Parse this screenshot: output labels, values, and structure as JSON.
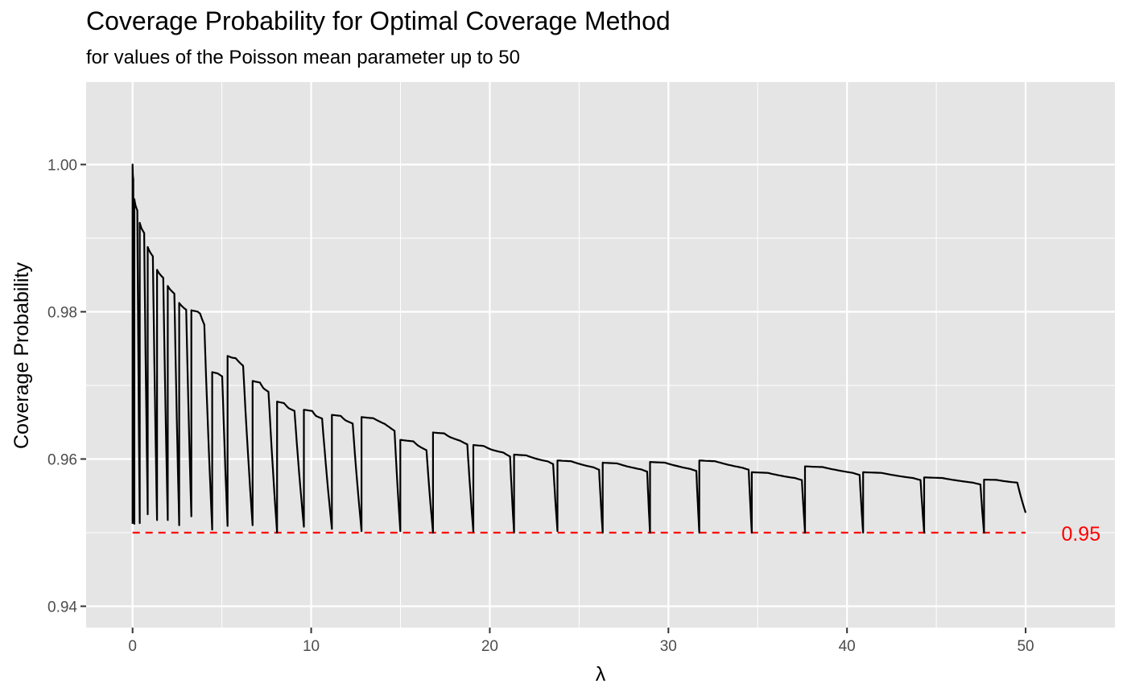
{
  "chart_data": {
    "type": "line",
    "title": "Coverage Probability for Optimal Coverage Method",
    "subtitle": "for values of the Poisson mean parameter up to 50",
    "xlabel": "λ",
    "ylabel": "Coverage Probability",
    "xlim": [
      -2.6,
      55.0
    ],
    "ylim": [
      0.9371,
      1.0112
    ],
    "x_ticks": [
      0,
      10,
      20,
      30,
      40,
      50
    ],
    "x_tick_labels": [
      "0",
      "10",
      "20",
      "30",
      "40",
      "50"
    ],
    "y_ticks": [
      0.94,
      0.96,
      0.98,
      1.0
    ],
    "y_tick_labels": [
      "0.94",
      "0.96",
      "0.98",
      "1.00"
    ],
    "grid": true,
    "background": "#e5e5e5",
    "grid_color": "#ffffff",
    "line_color": "#000000",
    "reference_line": {
      "y": 0.95,
      "x_range": [
        0,
        50
      ],
      "style": "dashed",
      "color": "#ff0000",
      "label": "0.95",
      "label_x": 52.0
    },
    "series": [
      {
        "segments": [
          {
            "x0": 0.0,
            "top": 1.0,
            "bottom": 0.9512,
            "x1": 0.1,
            "shape": [
              [
                0.15,
                0.972
              ],
              [
                0.4,
                0.96
              ]
            ]
          },
          {
            "x0": 0.1,
            "top": 0.9953,
            "bottom": 0.9513,
            "x1": 0.4,
            "shape": [
              [
                0.2,
                0.982
              ],
              [
                0.55,
                0.965
              ]
            ]
          },
          {
            "x0": 0.4,
            "top": 0.9921,
            "bottom": 0.9525,
            "x1": 0.85,
            "shape": [
              [
                0.2,
                0.982
              ],
              [
                0.55,
                0.965
              ]
            ]
          },
          {
            "x0": 0.85,
            "top": 0.9888,
            "bottom": 0.9517,
            "x1": 1.37,
            "shape": [
              [
                0.2,
                0.984
              ],
              [
                0.55,
                0.966
              ]
            ]
          },
          {
            "x0": 1.37,
            "top": 0.9857,
            "bottom": 0.9517,
            "x1": 1.97,
            "shape": [
              [
                0.22,
                0.985
              ],
              [
                0.58,
                0.968
              ]
            ]
          },
          {
            "x0": 1.97,
            "top": 0.9835,
            "bottom": 0.951,
            "x1": 2.61,
            "shape": [
              [
                0.22,
                0.985
              ],
              [
                0.58,
                0.968
              ]
            ]
          },
          {
            "x0": 2.61,
            "top": 0.9812,
            "bottom": 0.9522,
            "x1": 3.29,
            "shape": [
              [
                0.22,
                0.985
              ],
              [
                0.58,
                0.968
              ]
            ]
          },
          {
            "x0": 3.29,
            "top": 0.9802,
            "bottom": 0.9504,
            "x1": 4.46,
            "shape": [
              [
                0.3,
                0.994
              ],
              [
                0.42,
                0.985
              ],
              [
                0.62,
                0.935
              ]
            ]
          },
          {
            "x0": 4.46,
            "top": 0.9718,
            "bottom": 0.9509,
            "x1": 5.32,
            "shape": [
              [
                0.35,
                0.992
              ],
              [
                0.65,
                0.973
              ]
            ]
          },
          {
            "x0": 5.32,
            "top": 0.974,
            "bottom": 0.951,
            "x1": 6.72,
            "shape": [
              [
                0.2,
                0.989
              ],
              [
                0.32,
                0.987
              ],
              [
                0.62,
                0.942
              ]
            ]
          },
          {
            "x0": 6.72,
            "top": 0.9706,
            "bottom": 0.95,
            "x1": 8.09,
            "shape": [
              [
                0.3,
                0.99
              ],
              [
                0.45,
                0.951
              ],
              [
                0.65,
                0.929
              ]
            ]
          },
          {
            "x0": 8.09,
            "top": 0.9678,
            "bottom": 0.9508,
            "x1": 9.59,
            "shape": [
              [
                0.26,
                0.988
              ],
              [
                0.43,
                0.948
              ],
              [
                0.65,
                0.926
              ]
            ]
          },
          {
            "x0": 9.59,
            "top": 0.9667,
            "bottom": 0.9505,
            "x1": 11.16,
            "shape": [
              [
                0.3,
                0.989
              ],
              [
                0.43,
                0.948
              ],
              [
                0.65,
                0.926
              ]
            ]
          },
          {
            "x0": 11.16,
            "top": 0.966,
            "bottom": 0.9502,
            "x1": 12.82,
            "shape": [
              [
                0.3,
                0.991
              ],
              [
                0.45,
                0.954
              ],
              [
                0.7,
                0.926
              ]
            ]
          },
          {
            "x0": 12.82,
            "top": 0.9657,
            "bottom": 0.9502,
            "x1": 14.99,
            "shape": [
              [
                0.22,
                0.992
              ],
              [
                0.3,
                0.99
              ],
              [
                0.6,
                0.94
              ],
              [
                0.72,
                0.911
              ],
              [
                0.85,
                0.88
              ]
            ]
          },
          {
            "x0": 14.99,
            "top": 0.9626,
            "bottom": 0.95,
            "x1": 16.82,
            "shape": [
              [
                0.4,
                0.984
              ],
              [
                0.55,
                0.937
              ],
              [
                0.8,
                0.889
              ]
            ]
          },
          {
            "x0": 16.82,
            "top": 0.9636,
            "bottom": 0.9501,
            "x1": 19.08,
            "shape": [
              [
                0.28,
                0.991
              ],
              [
                0.42,
                0.954
              ],
              [
                0.67,
                0.918
              ],
              [
                0.85,
                0.881
              ]
            ]
          },
          {
            "x0": 19.08,
            "top": 0.9619,
            "bottom": 0.95,
            "x1": 21.36,
            "shape": [
              [
                0.25,
                0.99
              ],
              [
                0.44,
                0.948
              ],
              [
                0.74,
                0.913
              ],
              [
                0.9,
                0.87
              ]
            ]
          },
          {
            "x0": 21.36,
            "top": 0.9606,
            "bottom": 0.9502,
            "x1": 23.79,
            "shape": [
              [
                0.28,
                0.99
              ],
              [
                0.5,
                0.947
              ],
              [
                0.78,
                0.911
              ],
              [
                0.9,
                0.877
              ]
            ]
          },
          {
            "x0": 23.79,
            "top": 0.9598,
            "bottom": 0.95,
            "x1": 26.32,
            "shape": [
              [
                0.3,
                0.99
              ],
              [
                0.55,
                0.941
              ],
              [
                0.8,
                0.905
              ],
              [
                0.92,
                0.873
              ]
            ]
          },
          {
            "x0": 26.32,
            "top": 0.9595,
            "bottom": 0.95,
            "x1": 28.97,
            "shape": [
              [
                0.3,
                0.99
              ],
              [
                0.57,
                0.939
              ],
              [
                0.82,
                0.903
              ],
              [
                0.94,
                0.873
              ]
            ]
          },
          {
            "x0": 28.97,
            "top": 0.9596,
            "bottom": 0.95,
            "x1": 31.73,
            "shape": [
              [
                0.3,
                0.99
              ],
              [
                0.57,
                0.939
              ],
              [
                0.82,
                0.901
              ],
              [
                0.94,
                0.874
              ]
            ]
          },
          {
            "x0": 31.73,
            "top": 0.9598,
            "bottom": 0.95,
            "x1": 34.67,
            "shape": [
              [
                0.3,
                0.99
              ],
              [
                0.57,
                0.938
              ],
              [
                0.82,
                0.9
              ],
              [
                0.94,
                0.873
              ]
            ]
          },
          {
            "x0": 34.67,
            "top": 0.9582,
            "bottom": 0.95,
            "x1": 37.65,
            "shape": [
              [
                0.3,
                0.99
              ],
              [
                0.57,
                0.939
              ],
              [
                0.82,
                0.903
              ],
              [
                0.94,
                0.871
              ]
            ]
          },
          {
            "x0": 37.65,
            "top": 0.959,
            "bottom": 0.95,
            "x1": 40.9,
            "shape": [
              [
                0.3,
                0.99
              ],
              [
                0.57,
                0.94
              ],
              [
                0.82,
                0.903
              ],
              [
                0.94,
                0.871
              ]
            ]
          },
          {
            "x0": 40.9,
            "top": 0.9582,
            "bottom": 0.95,
            "x1": 44.32,
            "shape": [
              [
                0.3,
                0.99
              ],
              [
                0.57,
                0.94
              ],
              [
                0.82,
                0.905
              ],
              [
                0.94,
                0.871
              ]
            ]
          },
          {
            "x0": 44.32,
            "top": 0.9575,
            "bottom": 0.95,
            "x1": 47.67,
            "shape": [
              [
                0.3,
                0.99
              ],
              [
                0.57,
                0.941
              ],
              [
                0.82,
                0.905
              ],
              [
                0.94,
                0.873
              ]
            ]
          },
          {
            "x0": 47.67,
            "top": 0.9572,
            "bottom": 0.9527,
            "x1": 50.0,
            "shape": [
              [
                0.3,
                0.992
              ],
              [
                0.55,
                0.943
              ],
              [
                0.8,
                0.91
              ]
            ]
          }
        ]
      }
    ]
  }
}
